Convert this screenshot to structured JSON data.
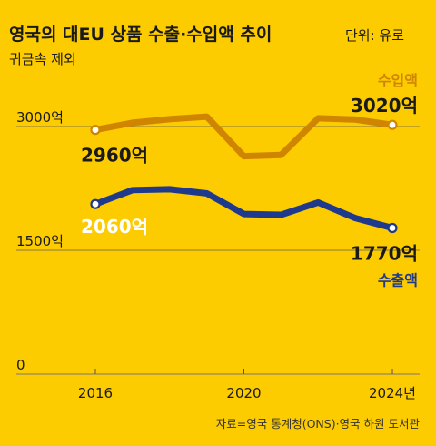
{
  "chart_data": {
    "type": "line",
    "title": "영국의 대EU 상품 수출·수입액 추이",
    "subtitle_line1": "단위: 유로",
    "subtitle_line2": "귀금속 제외",
    "x": [
      2016,
      2017,
      2018,
      2019,
      2020,
      2021,
      2022,
      2023,
      2024
    ],
    "x_tick_labels": [
      "2016",
      "2020",
      "2024년"
    ],
    "x_tick_values": [
      2016,
      2020,
      2024
    ],
    "y_tick_labels": [
      "3000억",
      "1500억",
      "0"
    ],
    "y_tick_values": [
      3000,
      1500,
      0
    ],
    "ylim": [
      0,
      3250
    ],
    "grid": true,
    "series": [
      {
        "name": "수입액",
        "color": "#D08500",
        "values": [
          2960,
          3045,
          3090,
          3120,
          2640,
          2655,
          3100,
          3085,
          3020
        ],
        "start_label": "2960억",
        "end_label": "3020억"
      },
      {
        "name": "수출액",
        "color": "#1F3A8C",
        "values": [
          2060,
          2230,
          2240,
          2190,
          1940,
          1930,
          2080,
          1890,
          1770
        ],
        "start_label": "2060억",
        "end_label": "1770억"
      }
    ]
  },
  "source": "자료=영국 통계청(ONS)·영국 하원 도서관"
}
